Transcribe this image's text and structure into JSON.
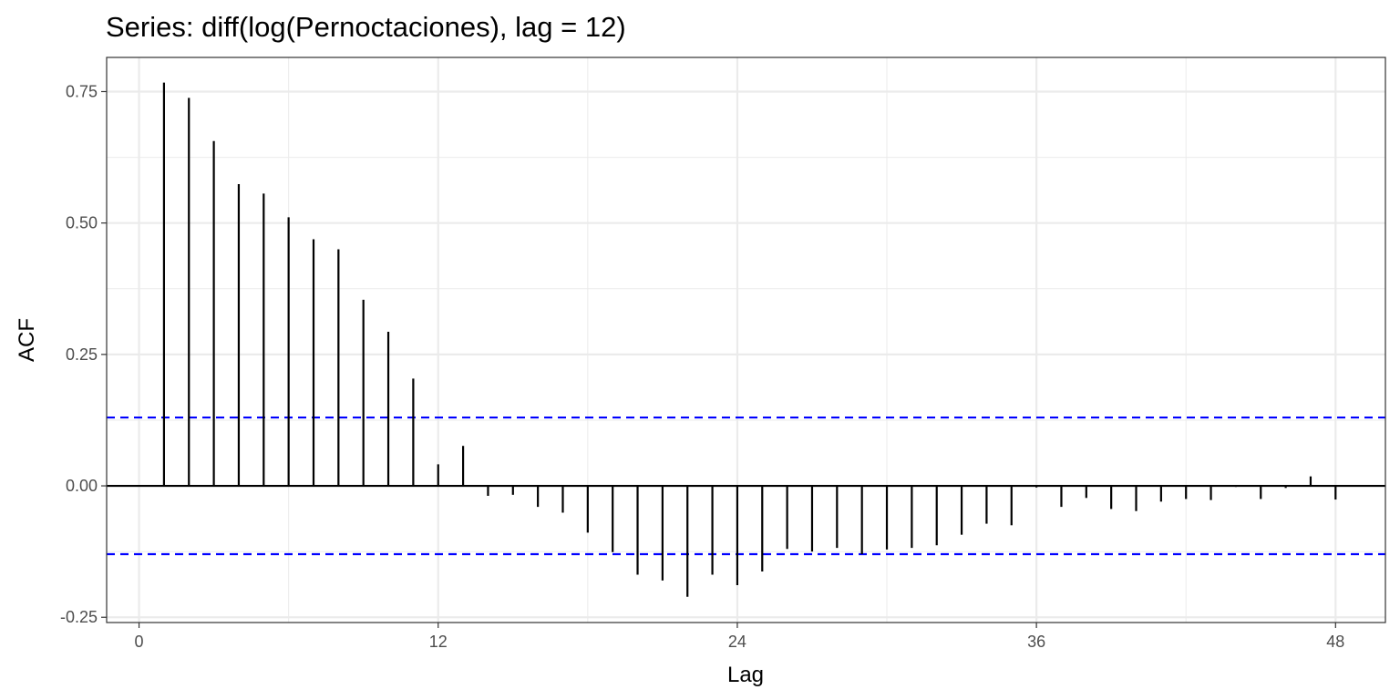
{
  "chart_data": {
    "type": "bar",
    "title": "Series: diff(log(Pernoctaciones), lag = 12)",
    "xlabel": "Lag",
    "ylabel": "ACF",
    "xlim": [
      -1.3,
      50
    ],
    "ylim": [
      -0.26,
      0.815
    ],
    "x_ticks": [
      0,
      12,
      24,
      36,
      48
    ],
    "x_tick_labels": [
      "0",
      "12",
      "24",
      "36",
      "48"
    ],
    "y_ticks": [
      -0.25,
      0,
      0.25,
      0.5,
      0.75
    ],
    "y_tick_labels": [
      "-0.25",
      "0.00",
      "0.25",
      "0.50",
      "0.75"
    ],
    "grid": true,
    "confidence_bound": 0.13,
    "lags": [
      1,
      2,
      3,
      4,
      5,
      6,
      7,
      8,
      9,
      10,
      11,
      12,
      13,
      14,
      15,
      16,
      17,
      18,
      19,
      20,
      21,
      22,
      23,
      24,
      25,
      26,
      27,
      28,
      29,
      30,
      31,
      32,
      33,
      34,
      35,
      36,
      37,
      38,
      39,
      40,
      41,
      42,
      43,
      44,
      45,
      46,
      47,
      48
    ],
    "values": [
      0.767,
      0.738,
      0.656,
      0.574,
      0.556,
      0.511,
      0.469,
      0.45,
      0.354,
      0.293,
      0.204,
      0.041,
      0.076,
      -0.019,
      -0.017,
      -0.04,
      -0.051,
      -0.089,
      -0.126,
      -0.169,
      -0.18,
      -0.211,
      -0.169,
      -0.189,
      -0.163,
      -0.12,
      -0.125,
      -0.118,
      -0.13,
      -0.121,
      -0.118,
      -0.113,
      -0.093,
      -0.072,
      -0.075,
      -0.003,
      -0.04,
      -0.023,
      -0.044,
      -0.048,
      -0.03,
      -0.025,
      -0.027,
      -0.002,
      -0.025,
      -0.004,
      0.018,
      -0.026
    ],
    "colors": {
      "bars": "#000000",
      "bounds": "#0000ff",
      "grid": "#ebebeb",
      "panel_border": "#333333"
    }
  }
}
